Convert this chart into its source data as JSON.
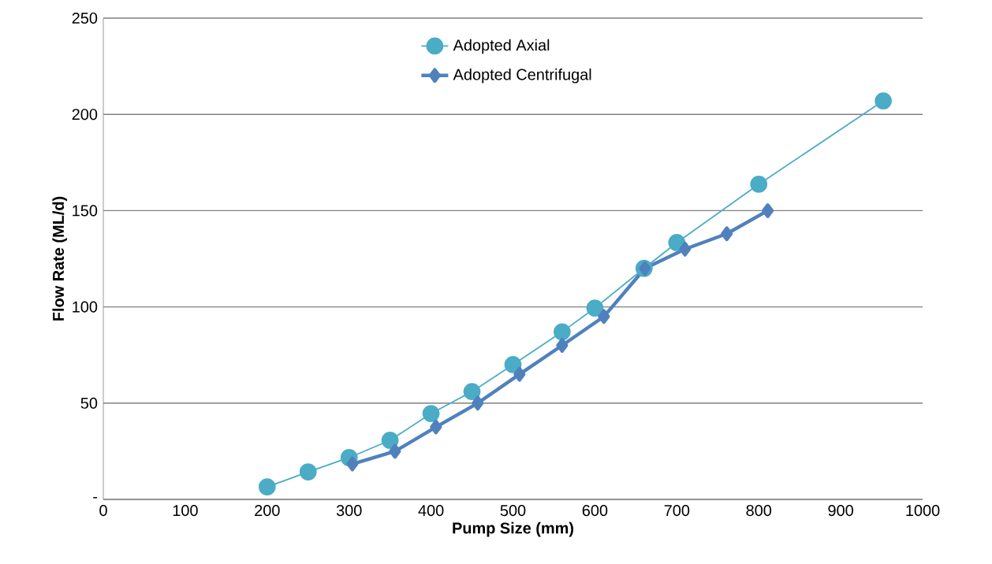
{
  "chart_data": {
    "type": "line",
    "xlabel": "Pump Size (mm)",
    "ylabel": "Flow Rate (ML/d)",
    "xlim": [
      0,
      1000
    ],
    "xticks": [
      0,
      100,
      200,
      300,
      400,
      500,
      600,
      700,
      800,
      900,
      1000
    ],
    "ylim": [
      0,
      250
    ],
    "yticks": [
      {
        "value": 0,
        "label": "-"
      },
      50,
      100,
      150,
      200,
      250
    ],
    "grid": "y",
    "legend": "top",
    "series": [
      {
        "name": "Adopted Axial",
        "color": "#4bacc6",
        "marker": "circle",
        "x": [
          200,
          250,
          300,
          350,
          400,
          450,
          500,
          560,
          600,
          660,
          700,
          800,
          952
        ],
        "values": [
          6.5,
          14.3,
          21.7,
          30.7,
          44.6,
          56,
          70,
          87,
          99.4,
          120,
          133.4,
          163.7,
          207
        ]
      },
      {
        "name": "Adopted Centrifugal",
        "color": "#4f81bd",
        "marker": "diamond",
        "x": [
          304,
          356,
          406,
          457,
          508,
          560,
          611,
          661,
          710,
          761,
          811
        ],
        "values": [
          18.4,
          25,
          37.6,
          50,
          65,
          80,
          95,
          120,
          130,
          138,
          150
        ]
      }
    ]
  }
}
